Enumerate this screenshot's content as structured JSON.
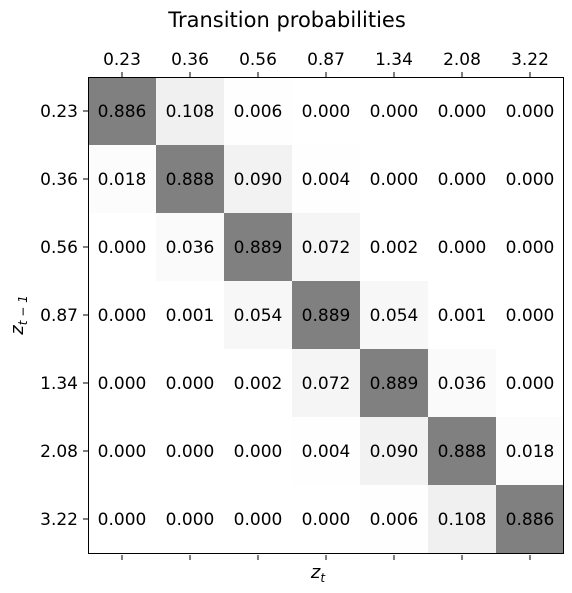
{
  "chart_data": {
    "type": "heatmap",
    "title": "Transition probabilities",
    "xlabel": "z",
    "xlabel_sub": "t",
    "ylabel": "z",
    "ylabel_sub": "t − 1",
    "x_ticks": [
      "0.23",
      "0.36",
      "0.56",
      "0.87",
      "1.34",
      "2.08",
      "3.22"
    ],
    "y_ticks": [
      "0.23",
      "0.36",
      "0.56",
      "0.87",
      "1.34",
      "2.08",
      "3.22"
    ],
    "x_tick_position": "top",
    "colormap": "greys",
    "color_max": "#808080",
    "color_min": "#ffffff",
    "matrix": [
      [
        "0.886",
        "0.108",
        "0.006",
        "0.000",
        "0.000",
        "0.000",
        "0.000"
      ],
      [
        "0.018",
        "0.888",
        "0.090",
        "0.004",
        "0.000",
        "0.000",
        "0.000"
      ],
      [
        "0.000",
        "0.036",
        "0.889",
        "0.072",
        "0.002",
        "0.000",
        "0.000"
      ],
      [
        "0.000",
        "0.001",
        "0.054",
        "0.889",
        "0.054",
        "0.001",
        "0.000"
      ],
      [
        "0.000",
        "0.000",
        "0.002",
        "0.072",
        "0.889",
        "0.036",
        "0.000"
      ],
      [
        "0.000",
        "0.000",
        "0.000",
        "0.004",
        "0.090",
        "0.888",
        "0.018"
      ],
      [
        "0.000",
        "0.000",
        "0.000",
        "0.000",
        "0.006",
        "0.108",
        "0.886"
      ]
    ]
  }
}
